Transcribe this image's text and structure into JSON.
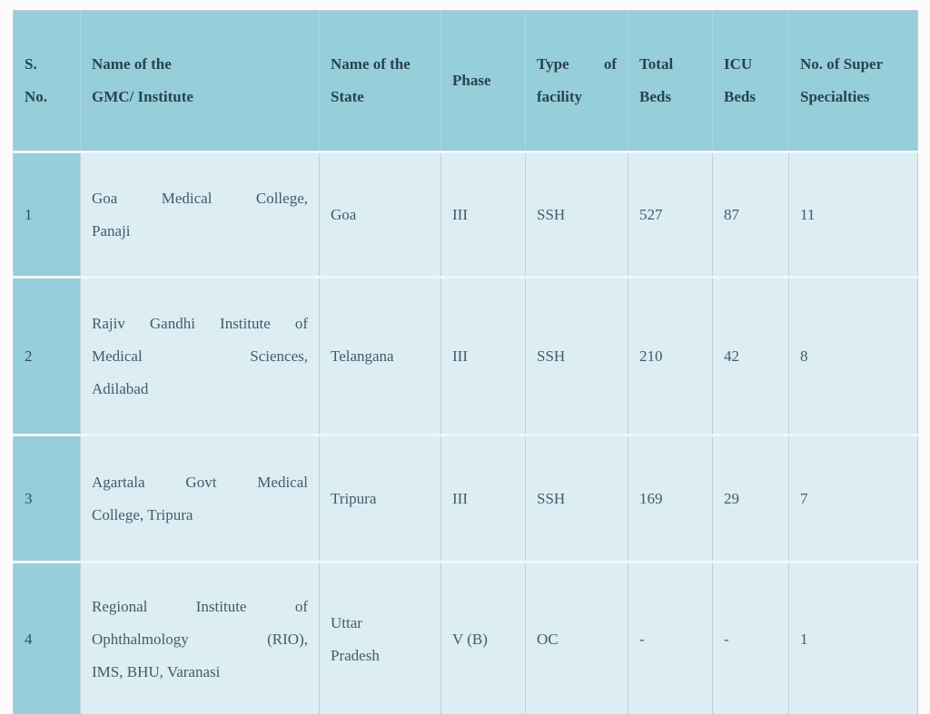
{
  "colors": {
    "header_bg": "#96ceda",
    "sno_column_bg": "#96ceda",
    "row_bg": "#dcedf4",
    "header_text": "#29434f",
    "body_text": "#445b66",
    "page_bg": "#fbfbfb"
  },
  "table": {
    "headers": [
      {
        "id": "sno",
        "label": "S.\nNo."
      },
      {
        "id": "institute",
        "label": "Name of the\nGMC/ Institute"
      },
      {
        "id": "state",
        "label": "Name of the\nState"
      },
      {
        "id": "phase",
        "label": "Phase"
      },
      {
        "id": "facility",
        "label": "Type of facility"
      },
      {
        "id": "total_beds",
        "label": "Total\nBeds"
      },
      {
        "id": "icu_beds",
        "label": "ICU\nBeds"
      },
      {
        "id": "super_specialties",
        "label": "No. of Super\nSpecialties"
      }
    ],
    "rows": [
      {
        "sno": "1",
        "institute": "Goa Medical College,\nPanaji",
        "state": "Goa",
        "phase": "III",
        "facility": "SSH",
        "total_beds": "527",
        "icu_beds": "87",
        "super_specialties": "11"
      },
      {
        "sno": "2",
        "institute": "Rajiv Gandhi Institute of\nMedical Sciences,\nAdilabad",
        "state": "Telangana",
        "phase": "III",
        "facility": "SSH",
        "total_beds": "210",
        "icu_beds": "42",
        "super_specialties": "8"
      },
      {
        "sno": "3",
        "institute": "Agartala Govt Medical\nCollege, Tripura",
        "state": "Tripura",
        "phase": "III",
        "facility": "SSH",
        "total_beds": "169",
        "icu_beds": "29",
        "super_specialties": "7"
      },
      {
        "sno": "4",
        "institute": "Regional Institute of\nOphthalmology (RIO),\nIMS, BHU, Varanasi",
        "state": "Uttar\nPradesh",
        "phase": "V (B)",
        "facility": "OC",
        "total_beds": "-",
        "icu_beds": "-",
        "super_specialties": "1"
      }
    ]
  }
}
